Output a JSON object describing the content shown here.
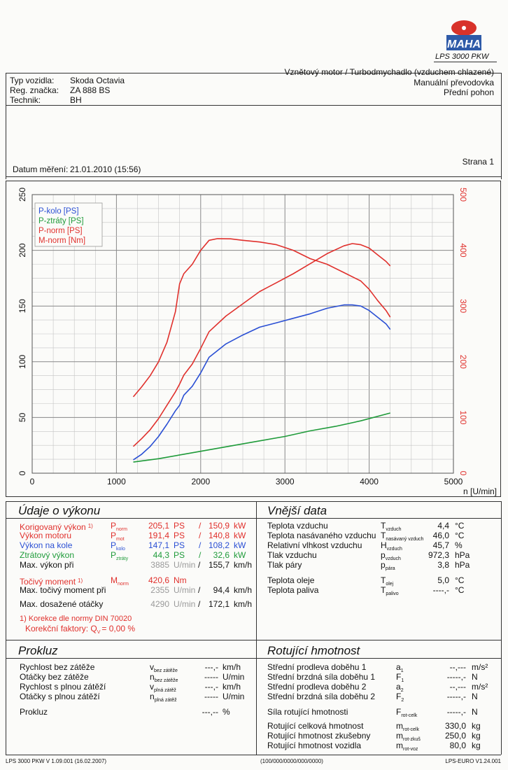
{
  "logo": {
    "brand": "MAHA",
    "model": "LPS 3000 PKW"
  },
  "header": {
    "vehicle_type_label": "Typ vozidla:",
    "vehicle_type": "Skoda Octavia",
    "reg_label": "Reg. značka:",
    "reg": "ZA 888 BS",
    "tech_label": "Technik:",
    "tech": "BH",
    "engine": "Vznětový motor / Turbodmychadlo (vzduchem chlazené)",
    "gearbox": "Manuální převodovka",
    "drive": "Přední pohon",
    "date_label": "Datum měření:",
    "date": "21.01.2010 (15:56)",
    "page": "Strana 1"
  },
  "chart_data": {
    "type": "line",
    "x_label": "n [U/min]",
    "xlim": [
      0,
      5000
    ],
    "x_ticks": [
      "0",
      "1000",
      "2000",
      "3000",
      "4000",
      "5000"
    ],
    "y_left_lim": [
      0,
      250
    ],
    "y_left_ticks": [
      "0",
      "50",
      "100",
      "150",
      "200",
      "250"
    ],
    "y_right_lim": [
      0,
      500
    ],
    "y_right_ticks": [
      "0",
      "100",
      "200",
      "300",
      "400",
      "500"
    ],
    "grid": true,
    "legend_position": "top-left",
    "series": [
      {
        "name": "P-kolo [PS]",
        "color": "#2a4fd4",
        "axis": "left",
        "x": [
          1200,
          1300,
          1400,
          1500,
          1600,
          1700,
          1750,
          1800,
          1900,
          2000,
          2100,
          2300,
          2500,
          2700,
          2900,
          3100,
          3300,
          3500,
          3700,
          3800,
          3900,
          4000,
          4100,
          4200,
          4250
        ],
        "y": [
          12,
          17,
          24,
          33,
          44,
          56,
          61,
          70,
          78,
          90,
          104,
          116,
          124,
          131,
          135,
          139,
          143,
          148,
          151,
          151,
          150,
          146,
          140,
          134,
          129
        ]
      },
      {
        "name": "P-ztráty [PS]",
        "color": "#1f9b3a",
        "axis": "left",
        "x": [
          1200,
          1500,
          1800,
          2100,
          2400,
          2700,
          3000,
          3300,
          3600,
          3900,
          4250
        ],
        "y": [
          10,
          13,
          17,
          21,
          25,
          29,
          33,
          38,
          42,
          47,
          54
        ]
      },
      {
        "name": "P-norm [PS]",
        "color": "#e0302c",
        "axis": "left",
        "x": [
          1200,
          1300,
          1400,
          1500,
          1600,
          1700,
          1750,
          1800,
          1900,
          2000,
          2100,
          2300,
          2500,
          2700,
          2900,
          3100,
          3300,
          3500,
          3700,
          3800,
          3900,
          4000,
          4100,
          4200,
          4250
        ],
        "y": [
          24,
          31,
          39,
          49,
          61,
          73,
          80,
          88,
          98,
          112,
          127,
          141,
          152,
          163,
          171,
          179,
          188,
          197,
          204,
          206,
          205,
          202,
          196,
          190,
          186
        ]
      },
      {
        "name": "M-norm [Nm]",
        "color": "#e0302c",
        "axis": "right",
        "x": [
          1200,
          1300,
          1400,
          1500,
          1600,
          1700,
          1750,
          1800,
          1900,
          2000,
          2100,
          2200,
          2355,
          2500,
          2700,
          2900,
          3100,
          3300,
          3500,
          3700,
          3900,
          4000,
          4100,
          4200,
          4250
        ],
        "y": [
          137,
          155,
          175,
          200,
          235,
          290,
          340,
          358,
          375,
          400,
          418,
          421,
          420.6,
          418,
          415,
          410,
          400,
          385,
          375,
          360,
          345,
          330,
          310,
          292,
          280
        ]
      }
    ]
  },
  "power": {
    "title": "Údaje o výkonu",
    "rows": [
      {
        "label": "Korigovaný výkon",
        "note": "1)",
        "sym": "P",
        "sub": "norm",
        "v1": "205,1",
        "u1": "PS",
        "sep": "/",
        "v2": "150,9",
        "u2": "kW",
        "color": "#e0302c"
      },
      {
        "label": "Výkon motoru",
        "note": "",
        "sym": "P",
        "sub": "mot",
        "v1": "191,4",
        "u1": "PS",
        "sep": "/",
        "v2": "140,8",
        "u2": "kW",
        "color": "#e0302c"
      },
      {
        "label": "Výkon na kole",
        "note": "",
        "sym": "P",
        "sub": "kolo",
        "v1": "147,1",
        "u1": "PS",
        "sep": "/",
        "v2": "108,2",
        "u2": "kW",
        "color": "#2a4fd4"
      },
      {
        "label": "Ztrátový výkon",
        "note": "",
        "sym": "P",
        "sub": "ztráty",
        "v1": "44,3",
        "u1": "PS",
        "sep": "/",
        "v2": "32,6",
        "u2": "kW",
        "color": "#1f9b3a"
      }
    ],
    "max_power_at": {
      "label": "Max. výkon při",
      "rpm": "3885",
      "rpm_unit": "U/min",
      "sep": "/",
      "speed": "155,7",
      "speed_unit": "km/h"
    },
    "torque": {
      "label": "Točivý moment",
      "note": "1)",
      "sym": "M",
      "sub": "norm",
      "value": "420,6",
      "unit": "Nm"
    },
    "max_torque_at": {
      "label": "Max. točivý moment při",
      "rpm": "2355",
      "rpm_unit": "U/min",
      "sep": "/",
      "speed": "94,4",
      "speed_unit": "km/h"
    },
    "max_rpm": {
      "label": "Max. dosažené otáčky",
      "rpm": "4290",
      "rpm_unit": "U/min",
      "sep": "/",
      "speed": "172,1",
      "speed_unit": "km/h"
    },
    "footnote1": "1) Korekce dle normy DIN 70020",
    "footnote2_label": "Korekční faktory: Q",
    "footnote2_sub": "V",
    "footnote2_value": "=   0,00 %"
  },
  "external": {
    "title": "Vnější data",
    "rows": [
      {
        "label": "Teplota vzduchu",
        "sym": "T",
        "sub": "vzduch",
        "value": "4,4",
        "unit": "°C"
      },
      {
        "label": "Teplota nasávaného vzduchu",
        "sym": "T",
        "sub": "nasávaný vzduch",
        "value": "46,0",
        "unit": "°C"
      },
      {
        "label": "Relativní vlhkost vzduchu",
        "sym": "H",
        "sub": "vzduch",
        "value": "45,7",
        "unit": "%"
      },
      {
        "label": "Tlak vzduchu",
        "sym": "p",
        "sub": "vzduch",
        "value": "972,3",
        "unit": "hPa"
      },
      {
        "label": "Tlak páry",
        "sym": "p",
        "sub": "pára",
        "value": "3,8",
        "unit": "hPa"
      },
      {
        "label": "Teplota oleje",
        "sym": "T",
        "sub": "olej",
        "value": "5,0",
        "unit": "°C"
      },
      {
        "label": "Teplota paliva",
        "sym": "T",
        "sub": "palivo",
        "value": "----,-",
        "unit": "°C"
      }
    ]
  },
  "prokluz": {
    "title": "Prokluz",
    "rows": [
      {
        "label": "Rychlost bez zátěže",
        "sym": "v",
        "sub": "bez zátěže",
        "value": "---,-",
        "unit": "km/h"
      },
      {
        "label": "Otáčky bez zátěže",
        "sym": "n",
        "sub": "bez zátěže",
        "value": "-----",
        "unit": "U/min"
      },
      {
        "label": "Rychlost s plnou zátěží",
        "sym": "v",
        "sub": "plná zátěž",
        "value": "---,-",
        "unit": "km/h"
      },
      {
        "label": "Otáčky s plnou zátěží",
        "sym": "n",
        "sub": "plná zátěž",
        "value": "-----",
        "unit": "U/min"
      },
      {
        "label": "Prokluz",
        "sym": "",
        "sub": "",
        "value": "---,--",
        "unit": "%"
      }
    ]
  },
  "rotating": {
    "title": "Rotující hmotnost",
    "rows": [
      {
        "label": "Střední prodleva doběhu 1",
        "sym": "a",
        "sub": "1",
        "value": "--,---",
        "unit": "m/s²"
      },
      {
        "label": "Střední brzdná síla doběhu 1",
        "sym": "F",
        "sub": "1",
        "value": "-----,-",
        "unit": "N"
      },
      {
        "label": "Střední prodleva doběhu 2",
        "sym": "a",
        "sub": "2",
        "value": "--,---",
        "unit": "m/s²"
      },
      {
        "label": "Střední brzdná síla doběhu 2",
        "sym": "F",
        "sub": "2",
        "value": "-----,-",
        "unit": "N"
      },
      {
        "label": "Síla rotující hmotnosti",
        "sym": "F",
        "sub": "rot-celk",
        "value": "-----,-",
        "unit": "N"
      },
      {
        "label": "Rotující celková hmotnost",
        "sym": "m",
        "sub": "rot-celk",
        "value": "330,0",
        "unit": "kg"
      },
      {
        "label": "Rotující hmotnost zkušebny",
        "sym": "m",
        "sub": "rot-zkuš",
        "value": "250,0",
        "unit": "kg"
      },
      {
        "label": "Rotující hmotnost vozidla",
        "sym": "m",
        "sub": "rot-voz",
        "value": "80,0",
        "unit": "kg"
      }
    ]
  },
  "footer": {
    "left": "LPS 3000 PKW V 1.09.001 (16.02.2007)",
    "center": "(100/000/0000/000/0000)",
    "right": "LPS-EURO V1.24.001"
  }
}
